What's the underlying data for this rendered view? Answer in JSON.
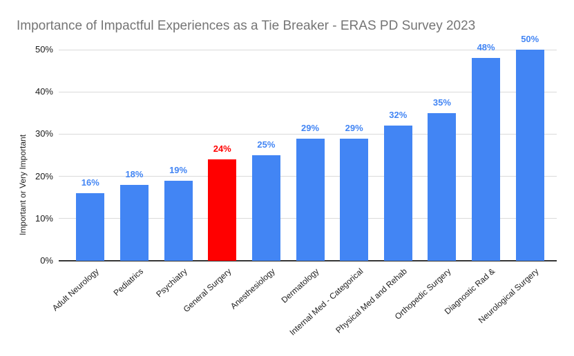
{
  "style": {
    "title_color": "#757575",
    "grid_color": "#dadada",
    "axis_line_color": "#333333",
    "tick_text_color": "#1a1a1a",
    "series_blue": "#4285f4",
    "highlight_red": "#ff0000",
    "background": "#ffffff"
  },
  "chart_data": {
    "type": "bar",
    "title": "Importance of Impactful Experiences as a Tie Breaker - ERAS PD Survey 2023",
    "xlabel": "",
    "ylabel": "Important or Very Important",
    "ylim": [
      0,
      50
    ],
    "yticks": [
      0,
      10,
      20,
      30,
      40,
      50
    ],
    "ytick_suffix": "%",
    "grid": true,
    "legend": false,
    "categories": [
      "Adult Neurology",
      "Pediatrics",
      "Psychiatry",
      "General Surgery",
      "Anesthesiology",
      "Dermatology",
      "Internal Med - Categorical",
      "Physical Med and Rehab",
      "Orthopedic Surgery",
      "Diagnostic Rad &",
      "Neurological Surgery"
    ],
    "values": [
      16,
      18,
      19,
      24,
      25,
      29,
      29,
      32,
      35,
      48,
      50
    ],
    "data_labels": [
      "16%",
      "18%",
      "19%",
      "24%",
      "25%",
      "29%",
      "29%",
      "32%",
      "35%",
      "48%",
      "50%"
    ],
    "bar_colors": [
      "#4285f4",
      "#4285f4",
      "#4285f4",
      "#ff0000",
      "#4285f4",
      "#4285f4",
      "#4285f4",
      "#4285f4",
      "#4285f4",
      "#4285f4",
      "#4285f4"
    ],
    "highlighted_category": "General Surgery"
  }
}
